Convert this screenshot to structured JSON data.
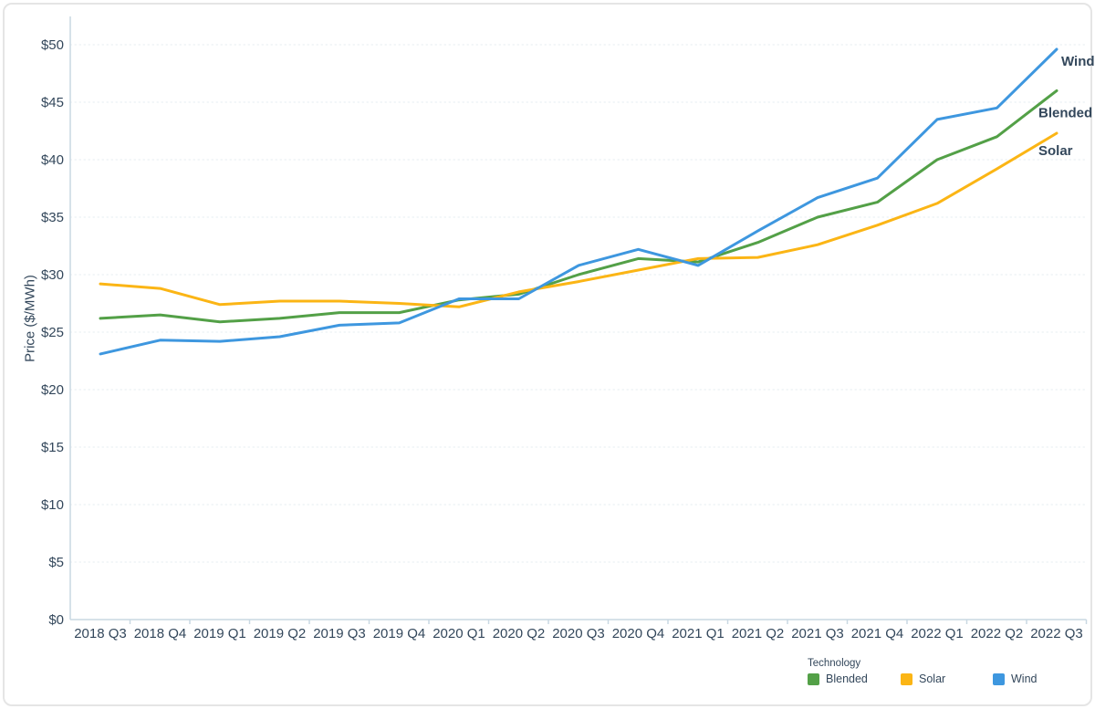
{
  "page": {
    "background": "#ffffff",
    "border_color": "#E5E5E5"
  },
  "colors": {
    "text": "#33475B",
    "axis_line": "#C9D8E2",
    "gridline": "#E6ECF1"
  },
  "legend": {
    "title": "Technology"
  },
  "chart_data": {
    "type": "line",
    "title": "",
    "xlabel": "",
    "ylabel": "Price ($/MWh)",
    "ylim": [
      0,
      50
    ],
    "ytick_step": 5,
    "ytick_prefix": "$",
    "grid": "horizontal dotted gridlines every $5",
    "legend_position": "bottom-right",
    "end_labels": true,
    "categories": [
      "2018 Q3",
      "2018 Q4",
      "2019 Q1",
      "2019 Q2",
      "2019 Q3",
      "2019 Q4",
      "2020 Q1",
      "2020 Q2",
      "2020 Q3",
      "2020 Q4",
      "2021 Q1",
      "2021 Q2",
      "2021 Q3",
      "2021 Q4",
      "2022 Q1",
      "2022 Q2",
      "2022 Q3"
    ],
    "series": [
      {
        "name": "Blended",
        "color": "#53A047",
        "values": [
          26.2,
          26.5,
          25.9,
          26.2,
          26.7,
          26.7,
          27.8,
          28.3,
          30.0,
          31.4,
          31.1,
          32.8,
          35.0,
          36.3,
          40.0,
          42.0,
          46.0
        ]
      },
      {
        "name": "Solar",
        "color": "#FBB515",
        "values": [
          29.2,
          28.8,
          27.4,
          27.7,
          27.7,
          27.5,
          27.2,
          28.5,
          29.4,
          30.4,
          31.4,
          31.5,
          32.6,
          34.3,
          36.2,
          39.2,
          42.3
        ]
      },
      {
        "name": "Wind",
        "color": "#3E97DF",
        "values": [
          23.1,
          24.3,
          24.2,
          24.6,
          25.6,
          25.8,
          27.9,
          27.9,
          30.8,
          32.2,
          30.8,
          33.8,
          36.7,
          38.4,
          43.5,
          44.5,
          49.6
        ]
      }
    ]
  }
}
